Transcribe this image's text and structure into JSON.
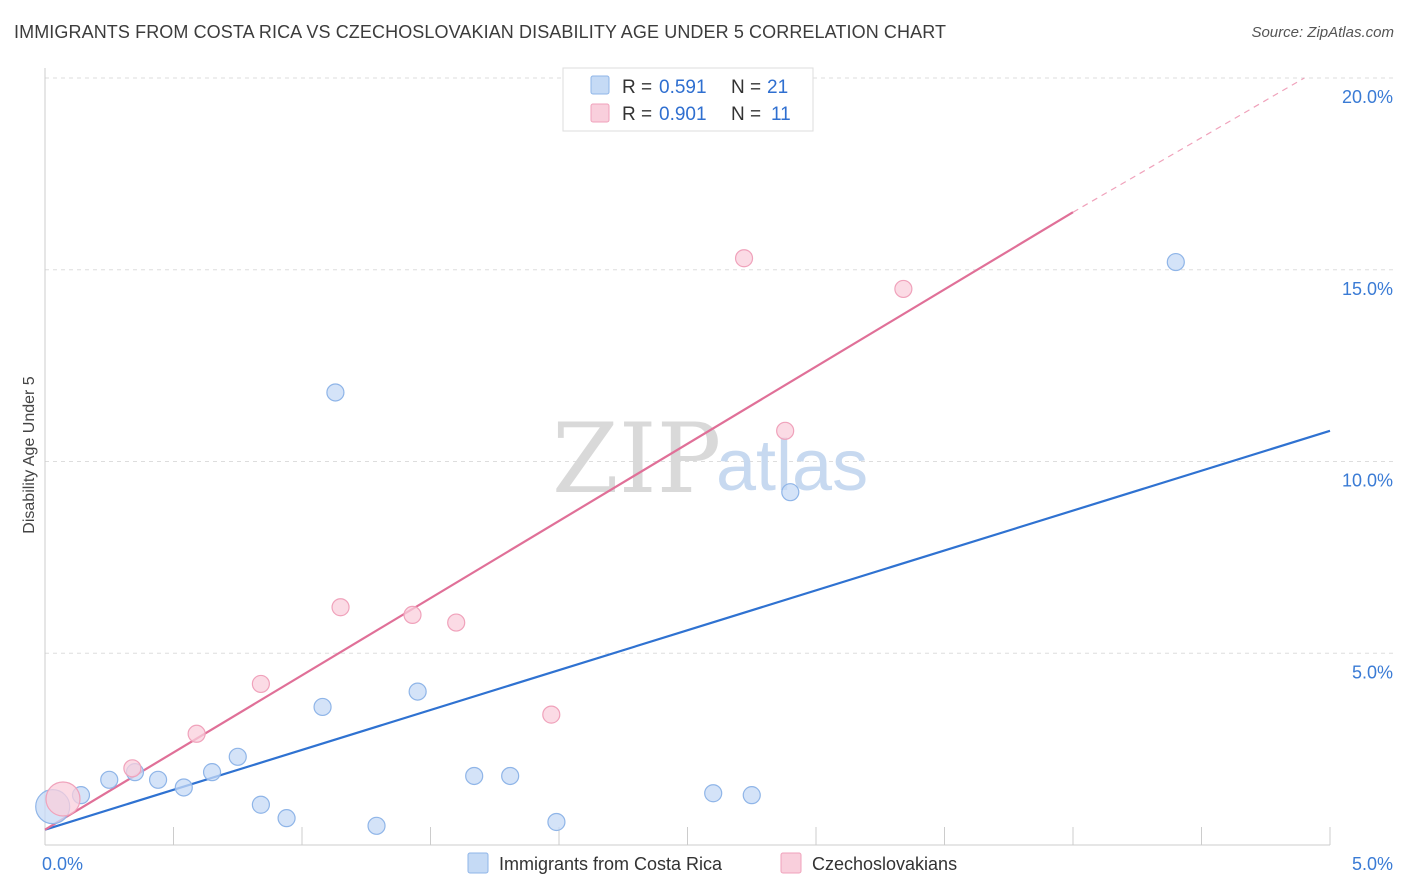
{
  "header": {
    "title": "IMMIGRANTS FROM COSTA RICA VS CZECHOSLOVAKIAN DISABILITY AGE UNDER 5 CORRELATION CHART",
    "source": "Source: ZipAtlas.com"
  },
  "watermark": {
    "zip": "ZIP",
    "atlas": "atlas"
  },
  "legend": {
    "rows": [
      {
        "r_label": "R =",
        "r_value": "0.591",
        "n_label": "N =",
        "n_value": "21"
      },
      {
        "r_label": "R =",
        "r_value": "0.901",
        "n_label": "N =",
        "n_value": "11"
      }
    ]
  },
  "colors": {
    "blue_fill": "#c5daf5",
    "blue_stroke": "#8fb5e8",
    "blue_line": "#2f72d1",
    "pink_fill": "#f9cfdc",
    "pink_stroke": "#f0a2bb",
    "pink_line": "#e07098",
    "grid": "#dddddd",
    "tick_text": "#3a7bd5"
  },
  "chart_data": {
    "type": "scatter",
    "title": "IMMIGRANTS FROM COSTA RICA VS CZECHOSLOVAKIAN DISABILITY AGE UNDER 5 CORRELATION CHART",
    "xlabel": "",
    "ylabel": "Disability Age Under 5",
    "xlim": [
      0.0,
      5.0
    ],
    "ylim": [
      0.0,
      20.0
    ],
    "x_tick_labels": [
      "0.0%",
      "5.0%"
    ],
    "y_ticks": [
      5.0,
      10.0,
      15.0,
      20.0
    ],
    "y_tick_labels": [
      "5.0%",
      "10.0%",
      "15.0%",
      "20.0%"
    ],
    "grid": true,
    "legend_position": "top-center",
    "series": [
      {
        "name": "Immigrants from Costa Rica",
        "color": "#c5daf5",
        "points": [
          {
            "x": 0.03,
            "y": 1.0,
            "size": "large"
          },
          {
            "x": 0.14,
            "y": 1.3
          },
          {
            "x": 0.25,
            "y": 1.7
          },
          {
            "x": 0.35,
            "y": 1.9
          },
          {
            "x": 0.44,
            "y": 1.7
          },
          {
            "x": 0.54,
            "y": 1.5
          },
          {
            "x": 0.65,
            "y": 1.9
          },
          {
            "x": 0.75,
            "y": 2.3
          },
          {
            "x": 0.84,
            "y": 1.05
          },
          {
            "x": 0.94,
            "y": 0.7
          },
          {
            "x": 1.08,
            "y": 3.6
          },
          {
            "x": 1.13,
            "y": 11.8
          },
          {
            "x": 1.29,
            "y": 0.5
          },
          {
            "x": 1.45,
            "y": 4.0
          },
          {
            "x": 1.67,
            "y": 1.8
          },
          {
            "x": 1.81,
            "y": 1.8
          },
          {
            "x": 1.99,
            "y": 0.6
          },
          {
            "x": 2.6,
            "y": 1.35
          },
          {
            "x": 2.75,
            "y": 1.3
          },
          {
            "x": 2.9,
            "y": 9.2
          },
          {
            "x": 4.4,
            "y": 15.2
          }
        ],
        "trend": {
          "x0": 0.0,
          "y0": 0.4,
          "x1": 5.0,
          "y1": 10.8
        }
      },
      {
        "name": "Czechoslovakians",
        "color": "#f9cfdc",
        "points": [
          {
            "x": 0.07,
            "y": 1.2,
            "size": "large"
          },
          {
            "x": 0.34,
            "y": 2.0
          },
          {
            "x": 0.59,
            "y": 2.9
          },
          {
            "x": 0.84,
            "y": 4.2
          },
          {
            "x": 1.15,
            "y": 6.2
          },
          {
            "x": 1.43,
            "y": 6.0
          },
          {
            "x": 1.6,
            "y": 5.8
          },
          {
            "x": 1.97,
            "y": 3.4
          },
          {
            "x": 2.72,
            "y": 15.3
          },
          {
            "x": 2.88,
            "y": 10.8
          },
          {
            "x": 3.34,
            "y": 14.5
          }
        ],
        "trend": {
          "x0": 0.0,
          "y0": 0.4,
          "x1": 4.0,
          "y1": 16.5
        },
        "trend_extension": {
          "x0": 4.0,
          "y0": 16.5,
          "x1": 4.9,
          "y1": 20.0
        }
      }
    ]
  }
}
